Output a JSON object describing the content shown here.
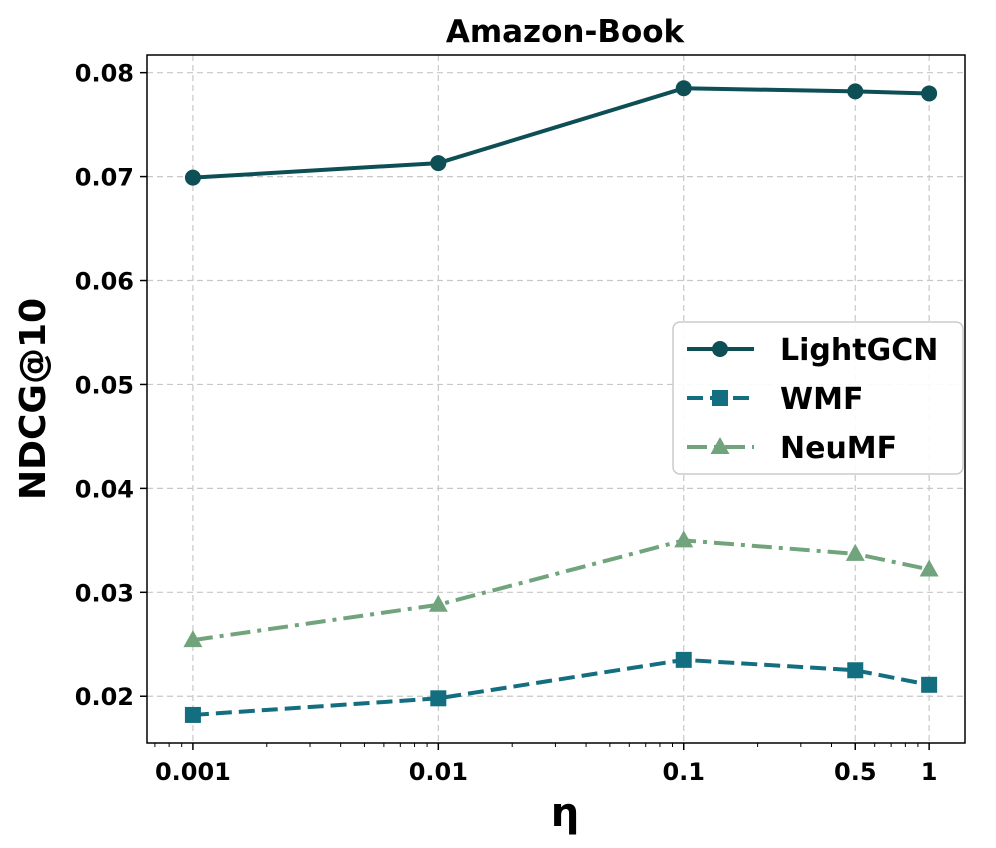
{
  "chart_data": {
    "type": "line",
    "title": "Amazon-Book",
    "xlabel": "η",
    "ylabel": "NDCG@10",
    "xscale": "log",
    "x": [
      0.001,
      0.01,
      0.1,
      0.5,
      1
    ],
    "x_tick_labels": [
      "0.001",
      "0.01",
      "0.1",
      "0.5",
      "1"
    ],
    "xlim": [
      0.00065,
      1.4
    ],
    "ylim": [
      0.0155,
      0.0817
    ],
    "y_ticks": [
      0.02,
      0.03,
      0.04,
      0.05,
      0.06,
      0.07,
      0.08
    ],
    "y_tick_labels": [
      "0.02",
      "0.03",
      "0.04",
      "0.05",
      "0.06",
      "0.07",
      "0.08"
    ],
    "grid": true,
    "legend_position": "center-right",
    "series": [
      {
        "name": "LightGCN",
        "values": [
          0.0699,
          0.0713,
          0.0785,
          0.0782,
          0.078
        ],
        "color": "#0d4f55",
        "marker": "circle",
        "linestyle": "solid"
      },
      {
        "name": "WMF",
        "values": [
          0.0182,
          0.0198,
          0.0235,
          0.0225,
          0.0211
        ],
        "color": "#136e7f",
        "marker": "square",
        "linestyle": "dashed"
      },
      {
        "name": "NeuMF",
        "values": [
          0.0254,
          0.0288,
          0.035,
          0.0337,
          0.0322
        ],
        "color": "#71a47c",
        "marker": "triangle",
        "linestyle": "dashdot"
      }
    ]
  }
}
